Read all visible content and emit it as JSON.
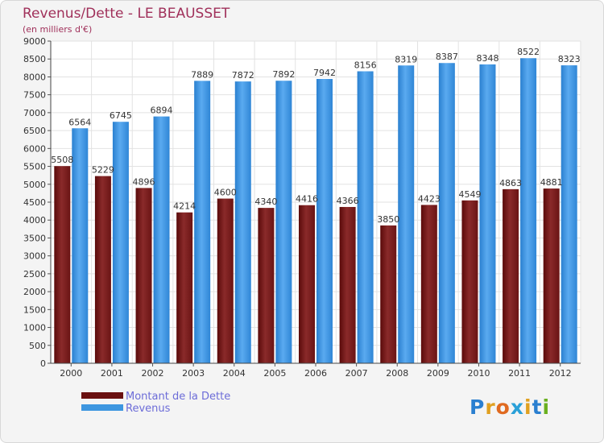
{
  "title": "Revenus/Dette - LE BEAUSSET",
  "subtitle": "(en milliers d'€)",
  "logo": {
    "text": "Proxiti",
    "letters": [
      {
        "ch": "P",
        "color": "#2a7fd0"
      },
      {
        "ch": "r",
        "color": "#e0a020"
      },
      {
        "ch": "o",
        "color": "#e06a20"
      },
      {
        "ch": "x",
        "color": "#2aa0d8"
      },
      {
        "ch": "i",
        "color": "#e0a020"
      },
      {
        "ch": "t",
        "color": "#2a7fd0"
      },
      {
        "ch": "i",
        "color": "#6ab020"
      }
    ]
  },
  "chart_data": {
    "type": "bar",
    "categories": [
      "2000",
      "2001",
      "2002",
      "2003",
      "2004",
      "2005",
      "2006",
      "2007",
      "2008",
      "2009",
      "2010",
      "2011",
      "2012"
    ],
    "series": [
      {
        "name": "Montant de la Dette",
        "color": "#7a1a1a",
        "values": [
          5508,
          5229,
          4896,
          4214,
          4600,
          4340,
          4416,
          4366,
          3850,
          4423,
          4549,
          4863,
          4881
        ]
      },
      {
        "name": "Revenus",
        "color": "#3d96e0",
        "values": [
          6564,
          6745,
          6894,
          7889,
          7872,
          7892,
          7942,
          8156,
          8319,
          8387,
          8348,
          8522,
          8323
        ]
      }
    ],
    "ylim": [
      0,
      9000
    ],
    "yticks": [
      0,
      500,
      1000,
      1500,
      2000,
      2500,
      3000,
      3500,
      4000,
      4500,
      5000,
      5500,
      6000,
      6500,
      7000,
      7500,
      8000,
      8500,
      9000
    ],
    "grid": true,
    "legend_position": "bottom-left"
  }
}
